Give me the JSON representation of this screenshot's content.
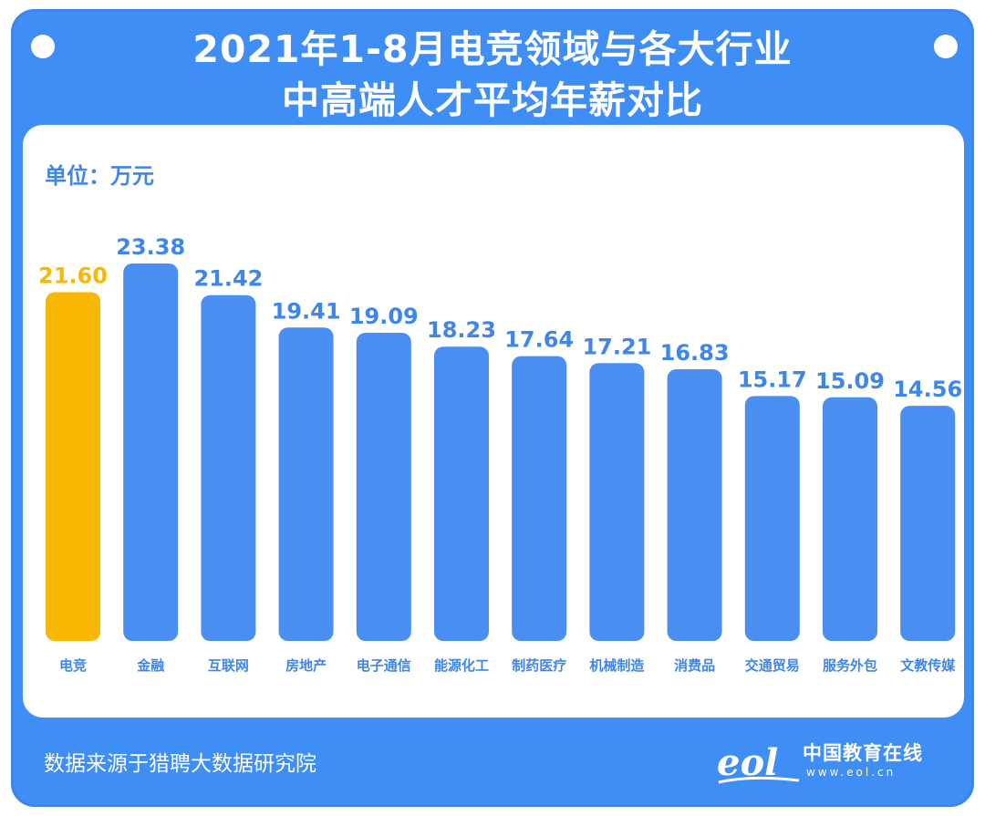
{
  "title_line1": "2021年1-8月电竞领域与各大行业",
  "title_line2": "中高端人才平均年薪对比",
  "unit_label": "单位：万元",
  "source": "数据来源于猎聘大数据研究院",
  "logo": {
    "mark": "eol",
    "name": "中国教育在线",
    "url": "www.eol.cn"
  },
  "colors": {
    "background": "#3f8ef5",
    "bar": "#4a8ef2",
    "highlight": "#f8b703",
    "label": "#3f86ea"
  },
  "chart_data": {
    "type": "bar",
    "title": "2021年1-8月电竞领域与各大行业中高端人才平均年薪对比",
    "ylabel": "万元",
    "xlabel": "",
    "ylim": [
      0,
      25
    ],
    "grid": false,
    "legend": "none",
    "categories": [
      "电竞",
      "金融",
      "互联网",
      "房地产",
      "电子通信",
      "能源化工",
      "制药医疗",
      "机械制造",
      "消费品",
      "交通贸易",
      "服务外包",
      "文教传媒"
    ],
    "values": [
      21.6,
      23.38,
      21.42,
      19.41,
      19.09,
      18.23,
      17.64,
      17.21,
      16.83,
      15.17,
      15.09,
      14.56
    ],
    "value_labels": [
      "21.60",
      "23.38",
      "21.42",
      "19.41",
      "19.09",
      "18.23",
      "17.64",
      "17.21",
      "16.83",
      "15.17",
      "15.09",
      "14.56"
    ],
    "highlight_index": 0
  }
}
